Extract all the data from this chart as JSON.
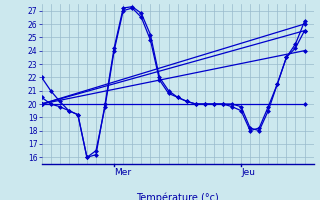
{
  "xlabel": "Température (°c)",
  "bg_color": "#cce8ee",
  "line_color": "#0000cc",
  "grid_color": "#99bbcc",
  "axis_color": "#0000aa",
  "text_color": "#0000aa",
  "ylim": [
    15.5,
    27.5
  ],
  "yticks": [
    16,
    17,
    18,
    19,
    20,
    21,
    22,
    23,
    24,
    25,
    26,
    27
  ],
  "xlim": [
    0,
    30
  ],
  "day_ticks": [
    {
      "label": "Mer",
      "x": 8
    },
    {
      "label": "Jeu",
      "x": 22
    }
  ],
  "series": [
    {
      "x": [
        0,
        1,
        2,
        3,
        4,
        5,
        6,
        7,
        8,
        9,
        10,
        11,
        12,
        13,
        14,
        15,
        16,
        17,
        18,
        19,
        20,
        21,
        22,
        23,
        24,
        25,
        26,
        27,
        28,
        29
      ],
      "y": [
        22,
        21,
        20.2,
        19.5,
        19.2,
        16.0,
        16.2,
        20.0,
        24.2,
        27.2,
        27.3,
        26.8,
        25.2,
        22.0,
        21.0,
        20.5,
        20.2,
        20.0,
        20.0,
        20.0,
        20.0,
        20.0,
        19.8,
        18.2,
        18.0,
        19.5,
        21.5,
        23.5,
        24.5,
        26.2
      ]
    },
    {
      "x": [
        0,
        1,
        2,
        3,
        4,
        5,
        6,
        7,
        8,
        9,
        10,
        11,
        12,
        13,
        14,
        15,
        16,
        17,
        18,
        19,
        20,
        21,
        22,
        23,
        24,
        25,
        26,
        27,
        28,
        29
      ],
      "y": [
        20.5,
        20.0,
        19.8,
        19.5,
        19.2,
        16.0,
        16.5,
        19.8,
        24.0,
        27.0,
        27.2,
        26.5,
        24.8,
        21.8,
        20.8,
        20.5,
        20.2,
        20.0,
        20.0,
        20.0,
        20.0,
        19.8,
        19.5,
        18.0,
        18.2,
        19.8,
        21.5,
        23.5,
        24.2,
        25.5
      ]
    },
    {
      "x": [
        0,
        29
      ],
      "y": [
        20.0,
        25.5
      ]
    },
    {
      "x": [
        0,
        29
      ],
      "y": [
        20.0,
        24.0
      ]
    },
    {
      "x": [
        0,
        29
      ],
      "y": [
        20.0,
        26.0
      ]
    },
    {
      "x": [
        0,
        29
      ],
      "y": [
        20.0,
        20.0
      ]
    }
  ],
  "marker": "D",
  "markersize": 2.5,
  "linewidth": 0.9
}
